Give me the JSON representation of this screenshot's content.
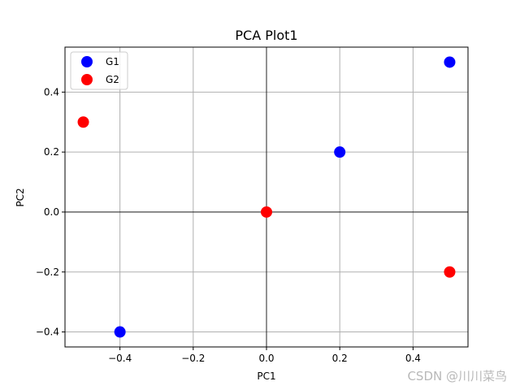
{
  "chart_data": {
    "type": "scatter",
    "title": "PCA Plot1",
    "xlabel": "PC1",
    "ylabel": "PC2",
    "xlim": [
      -0.55,
      0.55
    ],
    "ylim": [
      -0.45,
      0.55
    ],
    "xticks": [
      -0.4,
      -0.2,
      0.0,
      0.2,
      0.4
    ],
    "xtick_labels": [
      "−0.4",
      "−0.2",
      "0.0",
      "0.2",
      "0.4"
    ],
    "yticks": [
      -0.4,
      -0.2,
      0.0,
      0.2,
      0.4
    ],
    "ytick_labels": [
      "−0.4",
      "−0.2",
      "0.0",
      "0.2",
      "0.4"
    ],
    "grid": true,
    "zero_lines": true,
    "legend_position": "top-left",
    "series": [
      {
        "name": "G1",
        "color": "#0000ff",
        "points": [
          {
            "x": -0.4,
            "y": -0.4
          },
          {
            "x": 0.2,
            "y": 0.2
          },
          {
            "x": 0.5,
            "y": 0.5
          }
        ]
      },
      {
        "name": "G2",
        "color": "#ff0000",
        "points": [
          {
            "x": -0.5,
            "y": 0.3
          },
          {
            "x": 0.0,
            "y": 0.0
          },
          {
            "x": 0.5,
            "y": -0.2
          }
        ]
      }
    ]
  },
  "watermark": "CSDN @川川菜鸟"
}
